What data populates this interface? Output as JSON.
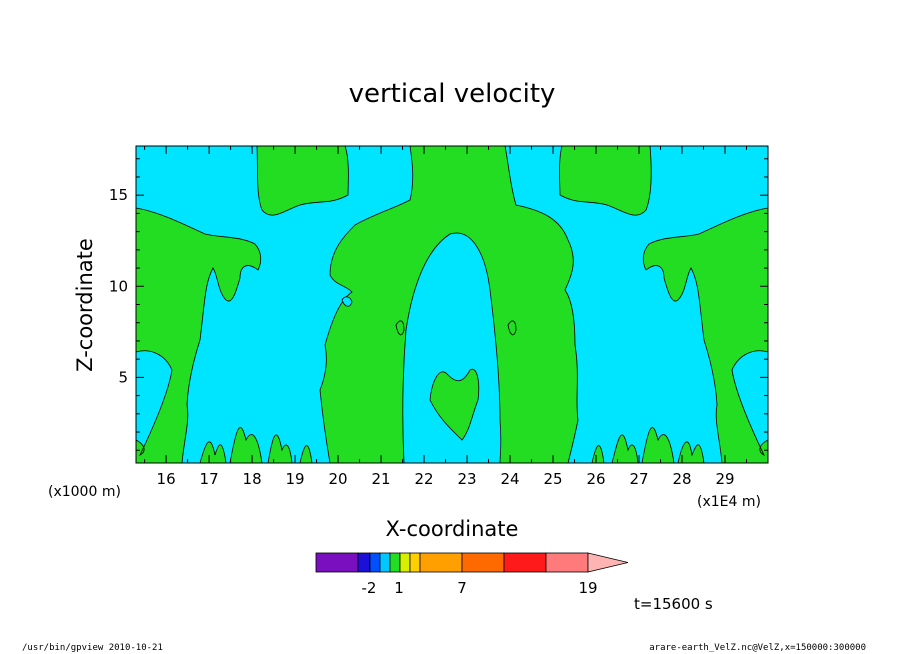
{
  "chart_data": {
    "type": "contour",
    "title": "vertical velocity",
    "xlabel": "X-coordinate",
    "ylabel": "Z-coordinate",
    "x_unit": "(x1E4 m)",
    "y_unit": "(x1000 m)",
    "xlim": [
      15.3,
      30.0
    ],
    "ylim": [
      0.3,
      17.7
    ],
    "x_ticks": [
      "16",
      "17",
      "18",
      "19",
      "20",
      "21",
      "22",
      "23",
      "24",
      "25",
      "26",
      "27",
      "28",
      "29"
    ],
    "y_ticks": [
      "5",
      "10",
      "15"
    ],
    "field_colors": {
      "negative": "#00e5ff",
      "positive": "#22dd22"
    },
    "colorbar": {
      "colors": [
        "#7a0fc0",
        "#1a10d8",
        "#0050ff",
        "#00c8ff",
        "#22dd22",
        "#d8f000",
        "#ffd000",
        "#ffa000",
        "#ff6a00",
        "#ff1a1a",
        "#ff7a7a",
        "#ffb4b4"
      ],
      "tick_labels": [
        "-2",
        "1",
        "7",
        "19"
      ]
    },
    "time_label": "t=15600 s",
    "footer_left": "/usr/bin/gpview   2010-10-21",
    "footer_right": "arare-earth_VelZ.nc@VelZ,x=150000:300000"
  }
}
